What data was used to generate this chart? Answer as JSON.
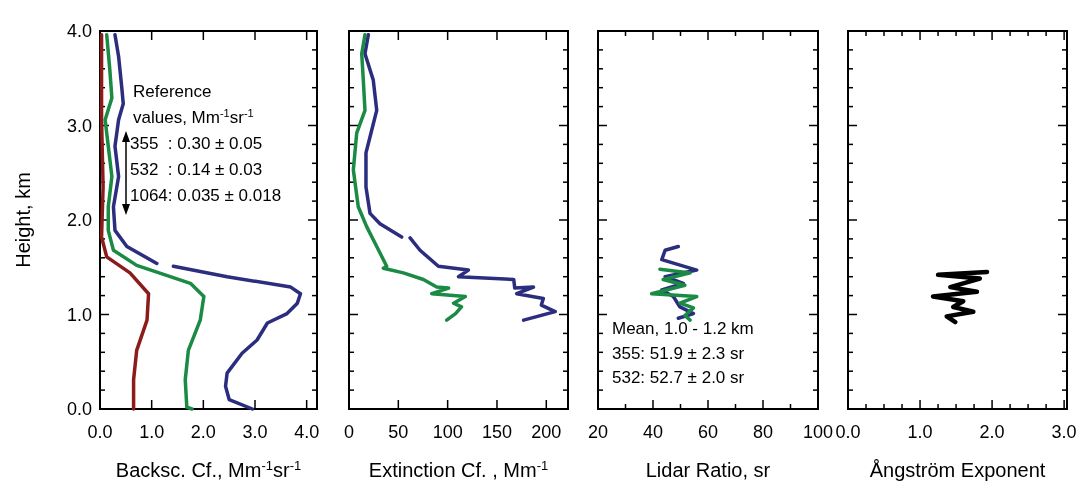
{
  "chart_data": [
    {
      "type": "line",
      "xlabel": "Backsc. Cf., Mm$^{-1}$sr$^{-1}$",
      "ylabel": "Height, km",
      "xlim": [
        0,
        4.2
      ],
      "xticks": [
        {
          "value": 0,
          "label": "0.0"
        },
        {
          "value": 1,
          "label": "1.0"
        },
        {
          "value": 2,
          "label": "2.0"
        },
        {
          "value": 3,
          "label": "3.0"
        },
        {
          "value": 4,
          "label": "4.0"
        }
      ],
      "ylim": [
        0,
        4
      ],
      "yticks": [
        {
          "value": 0,
          "label": "0.0"
        },
        {
          "value": 0.2,
          "label": null
        },
        {
          "value": 0.4,
          "label": null
        },
        {
          "value": 0.6,
          "label": null
        },
        {
          "value": 0.8,
          "label": null
        },
        {
          "value": 1,
          "label": "1.0"
        },
        {
          "value": 1.2,
          "label": null
        },
        {
          "value": 1.4,
          "label": null
        },
        {
          "value": 1.6,
          "label": null
        },
        {
          "value": 1.8,
          "label": null
        },
        {
          "value": 2,
          "label": "2.0"
        },
        {
          "value": 2.2,
          "label": null
        },
        {
          "value": 2.4,
          "label": null
        },
        {
          "value": 2.6,
          "label": null
        },
        {
          "value": 2.8,
          "label": null
        },
        {
          "value": 3,
          "label": "3.0"
        },
        {
          "value": 3.2,
          "label": null
        },
        {
          "value": 3.4,
          "label": null
        },
        {
          "value": 3.6,
          "label": null
        },
        {
          "value": 3.8,
          "label": null
        },
        {
          "value": 4,
          "label": "4.0"
        }
      ],
      "line_style": "solid",
      "annotations": [
        "Reference",
        "values, Mm$^{-1}$sr$^{-1}$",
        "355  : 0.30 ± 0.05",
        "532  : 0.14 ± 0.03",
        "1064: 0.035 ± 0.018"
      ],
      "series": [
        {
          "color": "#2b2d7f",
          "x": [
            0.29,
            0.36,
            0.42,
            0.45,
            0.36,
            0.29,
            0.36,
            0.26,
            0.29,
            0.52,
            1.1,
            null,
            1.42,
            2.46,
            3.69,
            3.88,
            3.82,
            3.62,
            3.24,
            3.04,
            2.75,
            2.46,
            2.43,
            2.5,
            2.95
          ],
          "values": [
            3.96,
            3.73,
            3.41,
            3.23,
            3.06,
            2.78,
            2.46,
            2.14,
            1.89,
            1.72,
            1.54,
            null,
            1.51,
            1.4,
            1.29,
            1.22,
            1.12,
            1.01,
            0.91,
            0.73,
            0.59,
            0.38,
            0.24,
            0.1,
            0.0
          ]
        },
        {
          "color": "#1a8a44",
          "x": [
            0.13,
            0.19,
            0.23,
            0.1,
            0.16,
            0.23,
            0.16,
            0.16,
            0.26,
            0.71,
            1.75,
            2.01,
            1.94,
            1.71,
            1.65,
            1.68,
            1.78
          ],
          "values": [
            3.96,
            3.59,
            3.29,
            3.06,
            2.78,
            2.46,
            2.14,
            1.89,
            1.68,
            1.52,
            1.33,
            1.19,
            0.94,
            0.62,
            0.31,
            0.02,
            0.0
          ]
        },
        {
          "color": "#8b1c1c",
          "x": [
            0.03,
            0.03,
            0.06,
            0.03,
            0.13,
            0.58,
            0.94,
            0.91,
            0.71,
            0.65,
            0.65
          ],
          "values": [
            3.96,
            3.06,
            2.35,
            1.82,
            1.61,
            1.44,
            1.22,
            0.94,
            0.62,
            0.31,
            0.0
          ]
        }
      ]
    },
    {
      "type": "line",
      "xlabel": "Extinction Cf. , Mm$^{-1}$",
      "xlim": [
        0,
        222
      ],
      "xticks": [
        0,
        50,
        100,
        150,
        200
      ],
      "ylim": [
        0,
        4
      ],
      "yticks": [
        0,
        0.2,
        0.4,
        0.6,
        0.8,
        1,
        1.2,
        1.4,
        1.6,
        1.8,
        2,
        2.2,
        2.4,
        2.6,
        2.8,
        3,
        3.2,
        3.4,
        3.6,
        3.8,
        4
      ],
      "tick_labels": "x",
      "line_style": "solid",
      "series": [
        {
          "color": "#2b2d7f",
          "x": [
            19.6,
            16.2,
            24.6,
            28.1,
            23.0,
            17.2,
            17.2,
            21.3,
            31.4,
            53.4,
            null,
            61.9,
            72.0,
            90.6,
            121,
            111,
            167,
            168,
            187,
            170,
            197,
            195,
            209,
            177
          ],
          "values": [
            3.96,
            3.76,
            3.48,
            3.16,
            2.95,
            2.71,
            2.35,
            2.07,
            1.96,
            1.82,
            null,
            1.81,
            1.68,
            1.51,
            1.47,
            1.4,
            1.37,
            1.28,
            1.29,
            1.22,
            1.17,
            1.1,
            1.03,
            0.94
          ]
        },
        {
          "color": "#1a8a44",
          "x": [
            16.2,
            12.9,
            14.5,
            16.2,
            7.8,
            4.4,
            9.4,
            17.9,
            28.1,
            38.2,
            34.8,
            55.1,
            75.4,
            88.9,
            101,
            83.9,
            118,
            106,
            114,
            108,
            99
          ],
          "values": [
            3.96,
            3.76,
            3.48,
            3.16,
            2.92,
            2.53,
            2.14,
            1.93,
            1.72,
            1.51,
            1.49,
            1.44,
            1.37,
            1.29,
            1.28,
            1.22,
            1.19,
            1.12,
            1.08,
            1.01,
            0.94
          ]
        }
      ]
    },
    {
      "type": "line",
      "xlabel": "Lidar Ratio, sr",
      "xlim": [
        20,
        100
      ],
      "xticks": [
        20,
        {
          "value": 30,
          "label": null
        },
        40,
        {
          "value": 50,
          "label": null
        },
        60,
        {
          "value": 70,
          "label": null
        },
        80,
        {
          "value": 90,
          "label": null
        },
        100
      ],
      "ylim": [
        0,
        4
      ],
      "yticks": [
        0,
        0.2,
        0.4,
        0.6,
        0.8,
        1,
        1.2,
        1.4,
        1.6,
        1.8,
        2,
        2.2,
        2.4,
        2.6,
        2.8,
        3,
        3.2,
        3.4,
        3.6,
        3.8,
        4
      ],
      "tick_labels": "x",
      "line_style": "solid",
      "annotations": [
        "Mean, 1.0 - 1.2 km",
        "355: 51.9 ± 2.3 sr",
        "532: 52.7 ± 2.0 sr"
      ],
      "series": [
        {
          "color": "#2b2d7f",
          "x": [
            49.2,
            44.4,
            43.2,
            55.9,
            44.4,
            51.0,
            43.2,
            47.4,
            49.8,
            54.7,
            49.2
          ],
          "values": [
            1.72,
            1.68,
            1.58,
            1.47,
            1.4,
            1.33,
            1.26,
            1.19,
            1.08,
            1.01,
            0.96
          ]
        },
        {
          "color": "#1a8a44",
          "x": [
            42.5,
            53.5,
            43.7,
            51.6,
            39.5,
            55.9,
            49.8,
            54.7,
            51.6,
            53.5
          ],
          "values": [
            1.48,
            1.44,
            1.37,
            1.31,
            1.22,
            1.19,
            1.12,
            1.07,
            0.99,
            0.94
          ]
        }
      ]
    },
    {
      "type": "line",
      "xlabel": "Ångström Exponent",
      "xlim": [
        0,
        3.04
      ],
      "xticks": [
        {
          "value": 0,
          "label": "0.0"
        },
        {
          "value": 0.25,
          "label": null
        },
        {
          "value": 0.5,
          "label": null
        },
        {
          "value": 0.75,
          "label": null
        },
        {
          "value": 1,
          "label": "1.0"
        },
        {
          "value": 1.25,
          "label": null
        },
        {
          "value": 1.5,
          "label": null
        },
        {
          "value": 1.75,
          "label": null
        },
        {
          "value": 2,
          "label": "2.0"
        },
        {
          "value": 2.25,
          "label": null
        },
        {
          "value": 2.5,
          "label": null
        },
        {
          "value": 2.75,
          "label": null
        },
        {
          "value": 3,
          "label": "3.0"
        }
      ],
      "ylim": [
        0,
        4
      ],
      "yticks": [
        0,
        0.2,
        0.4,
        0.6,
        0.8,
        1,
        1.2,
        1.4,
        1.6,
        1.8,
        2,
        2.2,
        2.4,
        2.6,
        2.8,
        3,
        3.2,
        3.4,
        3.6,
        3.8,
        4
      ],
      "tick_labels": "x",
      "line_style": "solid",
      "series": [
        {
          "color": "#000000",
          "x": [
            1.93,
            1.25,
            1.83,
            1.42,
            1.79,
            1.18,
            1.6,
            1.46,
            1.74,
            1.37,
            1.49
          ],
          "values": [
            1.45,
            1.42,
            1.38,
            1.29,
            1.24,
            1.19,
            1.14,
            1.08,
            1.03,
            0.98,
            0.92
          ]
        }
      ]
    }
  ]
}
